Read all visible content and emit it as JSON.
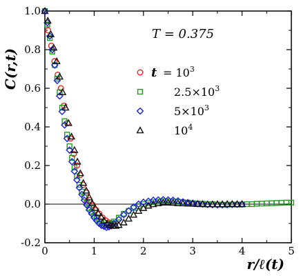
{
  "chart_data": {
    "type": "scatter",
    "title": "",
    "xlabel": "r/ℓ(t)",
    "ylabel": "C(r,t)",
    "annotation": "T = 0.375",
    "xlim": [
      0,
      5
    ],
    "ylim": [
      -0.2,
      1.0
    ],
    "x_ticks": [
      "0",
      "1",
      "2",
      "3",
      "4",
      "5"
    ],
    "y_ticks": [
      "-0.2",
      "0.0",
      "0.2",
      "0.4",
      "0.6",
      "0.8",
      "1.0"
    ],
    "x_tick_values": [
      0,
      1,
      2,
      3,
      4,
      5
    ],
    "y_tick_values": [
      -0.2,
      0.0,
      0.2,
      0.4,
      0.6,
      0.8,
      1.0
    ],
    "legend_title": "t",
    "legend_position": "center-right",
    "series": [
      {
        "name": "= 10^3",
        "marker": "circle",
        "color": "#e8231f",
        "x": [
          0.0,
          0.065,
          0.13,
          0.195,
          0.26,
          0.325,
          0.39,
          0.455,
          0.52,
          0.585,
          0.65,
          0.715,
          0.78,
          0.845,
          0.91,
          0.975,
          1.04,
          1.105,
          1.17,
          1.235,
          1.3,
          1.365,
          1.43
        ],
        "y": [
          1.0,
          0.9,
          0.82,
          0.74,
          0.67,
          0.6,
          0.51,
          0.42,
          0.34,
          0.26,
          0.2,
          0.15,
          0.1,
          0.06,
          0.02,
          -0.005,
          -0.03,
          -0.05,
          -0.07,
          -0.085,
          -0.095,
          -0.1,
          -0.1
        ]
      },
      {
        "name": "2.5×10^3",
        "marker": "square",
        "color": "#1f9a1f",
        "x": [
          0.0,
          0.05,
          0.1,
          0.15,
          0.2,
          0.25,
          0.3,
          0.35,
          0.4,
          0.45,
          0.5,
          0.55,
          0.6,
          0.65,
          0.7,
          0.75,
          0.8,
          0.85,
          0.9,
          0.95,
          1.0,
          1.05,
          1.1,
          1.15,
          1.2,
          1.25,
          1.3,
          1.35,
          1.4,
          1.5,
          1.6,
          1.7,
          1.8,
          1.9,
          2.0,
          2.1,
          2.2,
          2.3,
          2.4,
          2.5,
          2.6,
          2.7,
          2.8,
          2.9,
          3.0,
          3.1,
          3.2,
          3.3,
          3.4,
          3.5,
          3.6,
          3.7,
          3.8,
          3.9,
          4.0,
          4.1,
          4.2,
          4.3,
          4.4,
          4.5,
          4.6,
          4.7,
          4.8,
          4.9,
          5.0
        ],
        "y": [
          1.0,
          0.93,
          0.86,
          0.79,
          0.72,
          0.65,
          0.58,
          0.5,
          0.43,
          0.36,
          0.3,
          0.24,
          0.19,
          0.145,
          0.1,
          0.065,
          0.035,
          0.005,
          -0.02,
          -0.04,
          -0.06,
          -0.075,
          -0.09,
          -0.1,
          -0.108,
          -0.11,
          -0.108,
          -0.1,
          -0.09,
          -0.07,
          -0.05,
          -0.035,
          -0.02,
          -0.01,
          0.0,
          0.005,
          0.01,
          0.013,
          0.015,
          0.015,
          0.014,
          0.012,
          0.01,
          0.008,
          0.005,
          0.003,
          0.002,
          0.0,
          0.0,
          -0.002,
          -0.003,
          -0.003,
          -0.002,
          -0.002,
          -0.002,
          0.0,
          0.0,
          0.002,
          0.003,
          0.004,
          0.005,
          0.006,
          0.007,
          0.008,
          0.008
        ]
      },
      {
        "name": "5×10^3",
        "marker": "diamond",
        "color": "#1b22d8",
        "x": [
          0.0,
          0.05,
          0.1,
          0.15,
          0.2,
          0.25,
          0.3,
          0.35,
          0.4,
          0.45,
          0.5,
          0.55,
          0.6,
          0.65,
          0.7,
          0.75,
          0.8,
          0.85,
          0.9,
          0.95,
          1.0,
          1.05,
          1.1,
          1.15,
          1.2,
          1.25,
          1.3,
          1.35,
          1.4,
          1.5,
          1.6,
          1.7,
          1.8,
          1.9,
          2.0,
          2.1,
          2.2,
          2.3,
          2.4,
          2.5,
          2.6,
          2.7,
          2.8,
          2.9,
          3.0,
          3.1,
          3.2,
          3.3,
          3.4,
          3.5,
          3.6,
          3.7,
          3.8,
          3.9,
          4.0
        ],
        "y": [
          1.0,
          0.94,
          0.87,
          0.8,
          0.72,
          0.64,
          0.56,
          0.48,
          0.41,
          0.34,
          0.28,
          0.22,
          0.17,
          0.125,
          0.085,
          0.05,
          0.02,
          -0.005,
          -0.03,
          -0.05,
          -0.07,
          -0.085,
          -0.1,
          -0.11,
          -0.115,
          -0.12,
          -0.118,
          -0.112,
          -0.1,
          -0.08,
          -0.055,
          -0.035,
          -0.015,
          0.0,
          0.01,
          0.015,
          0.02,
          0.022,
          0.023,
          0.022,
          0.02,
          0.017,
          0.012,
          0.008,
          0.005,
          0.002,
          0.0,
          -0.002,
          -0.003,
          -0.004,
          -0.004,
          -0.003,
          -0.002,
          -0.001,
          0.0
        ]
      },
      {
        "name": "10^4",
        "marker": "triangle",
        "color": "#111111",
        "x": [
          0.0,
          0.06,
          0.12,
          0.18,
          0.24,
          0.3,
          0.36,
          0.42,
          0.48,
          0.54,
          0.6,
          0.66,
          0.72,
          0.78,
          0.84,
          0.9,
          0.96,
          1.02,
          1.08,
          1.14,
          1.2,
          1.26,
          1.32,
          1.38,
          1.44,
          1.5,
          1.6,
          1.7,
          1.8,
          1.9,
          2.0,
          2.1,
          2.2,
          2.3,
          2.4,
          2.5,
          2.6,
          2.7,
          2.8,
          2.9,
          3.0,
          3.1,
          3.2,
          3.3,
          3.4,
          3.5,
          3.6,
          3.7,
          3.8,
          3.9,
          4.0
        ],
        "y": [
          1.0,
          0.95,
          0.88,
          0.81,
          0.74,
          0.66,
          0.58,
          0.5,
          0.42,
          0.35,
          0.28,
          0.22,
          0.16,
          0.11,
          0.07,
          0.035,
          0.005,
          -0.02,
          -0.045,
          -0.065,
          -0.085,
          -0.1,
          -0.108,
          -0.112,
          -0.112,
          -0.108,
          -0.095,
          -0.075,
          -0.055,
          -0.035,
          -0.02,
          -0.008,
          0.0,
          0.005,
          0.008,
          0.008,
          0.007,
          0.005,
          0.004,
          0.003,
          0.002,
          0.001,
          0.0,
          -0.001,
          -0.001,
          0.0,
          0.0,
          0.001,
          0.001,
          0.0,
          0.0
        ]
      }
    ]
  }
}
